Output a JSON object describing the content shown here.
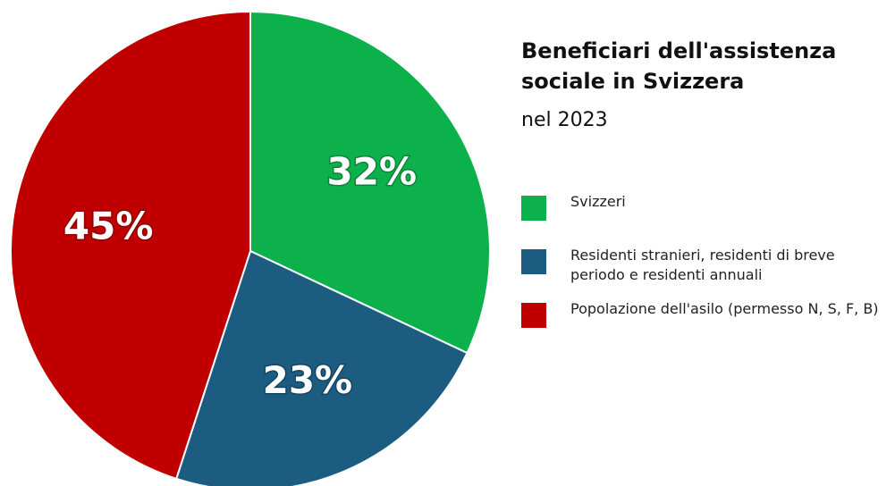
{
  "chart_data": {
    "type": "pie",
    "title": "Beneficiari dell'assistenza sociale in Svizzera",
    "subtitle": "nel 2023",
    "categories": [
      "Svizzeri",
      "Residenti stranieri, residenti di breve periodo e residenti annuali",
      "Popolazione dell'asilo (permesso N, S, F, B)"
    ],
    "values": [
      32,
      23,
      45
    ],
    "value_labels": [
      "32%",
      "23%",
      "45%"
    ],
    "colors": [
      "#0db14b",
      "#1b5c80",
      "#c00000"
    ]
  }
}
